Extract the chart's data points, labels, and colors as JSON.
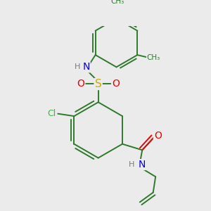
{
  "bg_color": "#ebebeb",
  "atom_colors": {
    "C": "#2d7a2d",
    "N": "#0000ee",
    "O": "#ee0000",
    "S": "#ccaa00",
    "Cl": "#33bb33",
    "H": "#7a7a7a"
  },
  "bond_color": "#2d7a2d",
  "lw": 1.4
}
